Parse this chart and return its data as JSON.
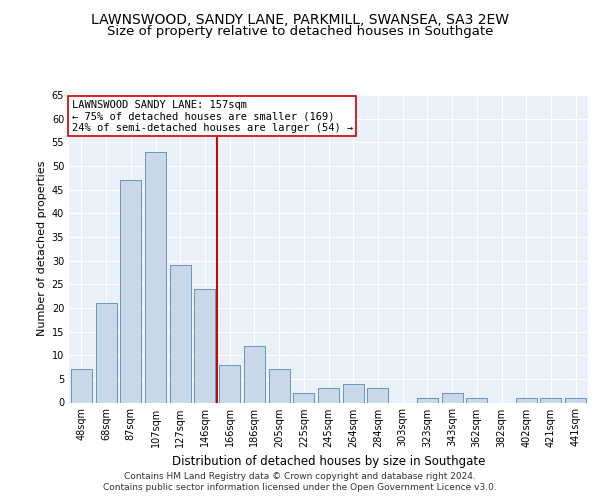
{
  "title": "LAWNSWOOD, SANDY LANE, PARKMILL, SWANSEA, SA3 2EW",
  "subtitle": "Size of property relative to detached houses in Southgate",
  "xlabel": "Distribution of detached houses by size in Southgate",
  "ylabel": "Number of detached properties",
  "categories": [
    "48sqm",
    "68sqm",
    "87sqm",
    "107sqm",
    "127sqm",
    "146sqm",
    "166sqm",
    "186sqm",
    "205sqm",
    "225sqm",
    "245sqm",
    "264sqm",
    "284sqm",
    "303sqm",
    "323sqm",
    "343sqm",
    "362sqm",
    "382sqm",
    "402sqm",
    "421sqm",
    "441sqm"
  ],
  "values": [
    7,
    21,
    47,
    53,
    29,
    24,
    8,
    12,
    7,
    2,
    3,
    4,
    3,
    0,
    1,
    2,
    1,
    0,
    1,
    1,
    1
  ],
  "bar_color": "#c8d8e8",
  "bar_edge_color": "#5a8ab0",
  "vline_x": 5.5,
  "vline_color": "#cc0000",
  "annotation_text": "LAWNSWOOD SANDY LANE: 157sqm\n← 75% of detached houses are smaller (169)\n24% of semi-detached houses are larger (54) →",
  "annotation_box_color": "#ffffff",
  "annotation_box_edge": "#cc0000",
  "ylim": [
    0,
    65
  ],
  "yticks": [
    0,
    5,
    10,
    15,
    20,
    25,
    30,
    35,
    40,
    45,
    50,
    55,
    60,
    65
  ],
  "plot_bg_color": "#eaf0f8",
  "footer_line1": "Contains HM Land Registry data © Crown copyright and database right 2024.",
  "footer_line2": "Contains public sector information licensed under the Open Government Licence v3.0.",
  "title_fontsize": 10,
  "subtitle_fontsize": 9.5,
  "xlabel_fontsize": 8.5,
  "ylabel_fontsize": 8,
  "tick_fontsize": 7,
  "annotation_fontsize": 7.5,
  "footer_fontsize": 6.5
}
